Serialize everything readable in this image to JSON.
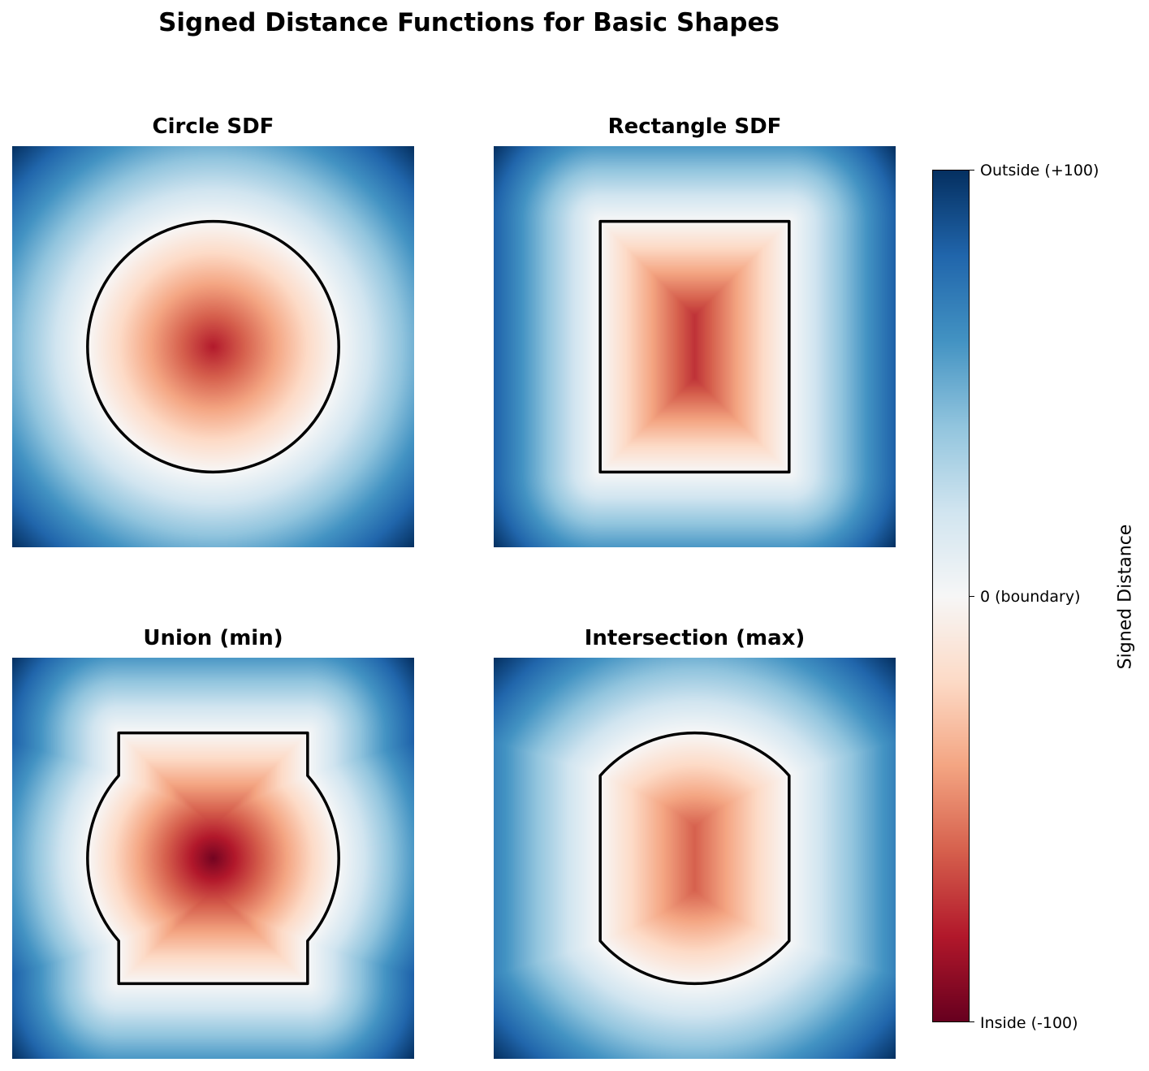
{
  "chart_data": {
    "type": "heatmap",
    "title": "Signed Distance Functions for Basic Shapes",
    "colormap": "RdBu",
    "colormap_stops": [
      "#67001f",
      "#b2182b",
      "#d6604d",
      "#f4a582",
      "#fddbc7",
      "#f7f7f7",
      "#d1e5f0",
      "#92c5de",
      "#4393c3",
      "#2166ac",
      "#053061"
    ],
    "contour_color": "#000000",
    "contour_level": 0,
    "domain": {
      "x": [
        0,
        100
      ],
      "y": [
        0,
        100
      ]
    },
    "shapes": {
      "circle": {
        "center": [
          50,
          50
        ],
        "radius": 31.25
      },
      "rectangle": {
        "center": [
          50,
          50
        ],
        "half_width": 23.5,
        "half_height": 31.25
      }
    },
    "panels": [
      {
        "title": "Circle SDF",
        "operation": "circle",
        "vmin": -100,
        "vmax": 100
      },
      {
        "title": "Rectangle SDF",
        "operation": "rectangle",
        "vmin": -100,
        "vmax": 100
      },
      {
        "title": "Union (min)",
        "operation": "union",
        "vmin": -100,
        "vmax": 100
      },
      {
        "title": "Intersection (max)",
        "operation": "intersection",
        "vmin": -100,
        "vmax": 100
      }
    ],
    "colorbar": {
      "label": "Signed Distance",
      "ticks": [
        {
          "value": 100,
          "label": "Outside (+100)"
        },
        {
          "value": 0,
          "label": "0 (boundary)"
        },
        {
          "value": -100,
          "label": "Inside (-100)"
        }
      ]
    }
  }
}
